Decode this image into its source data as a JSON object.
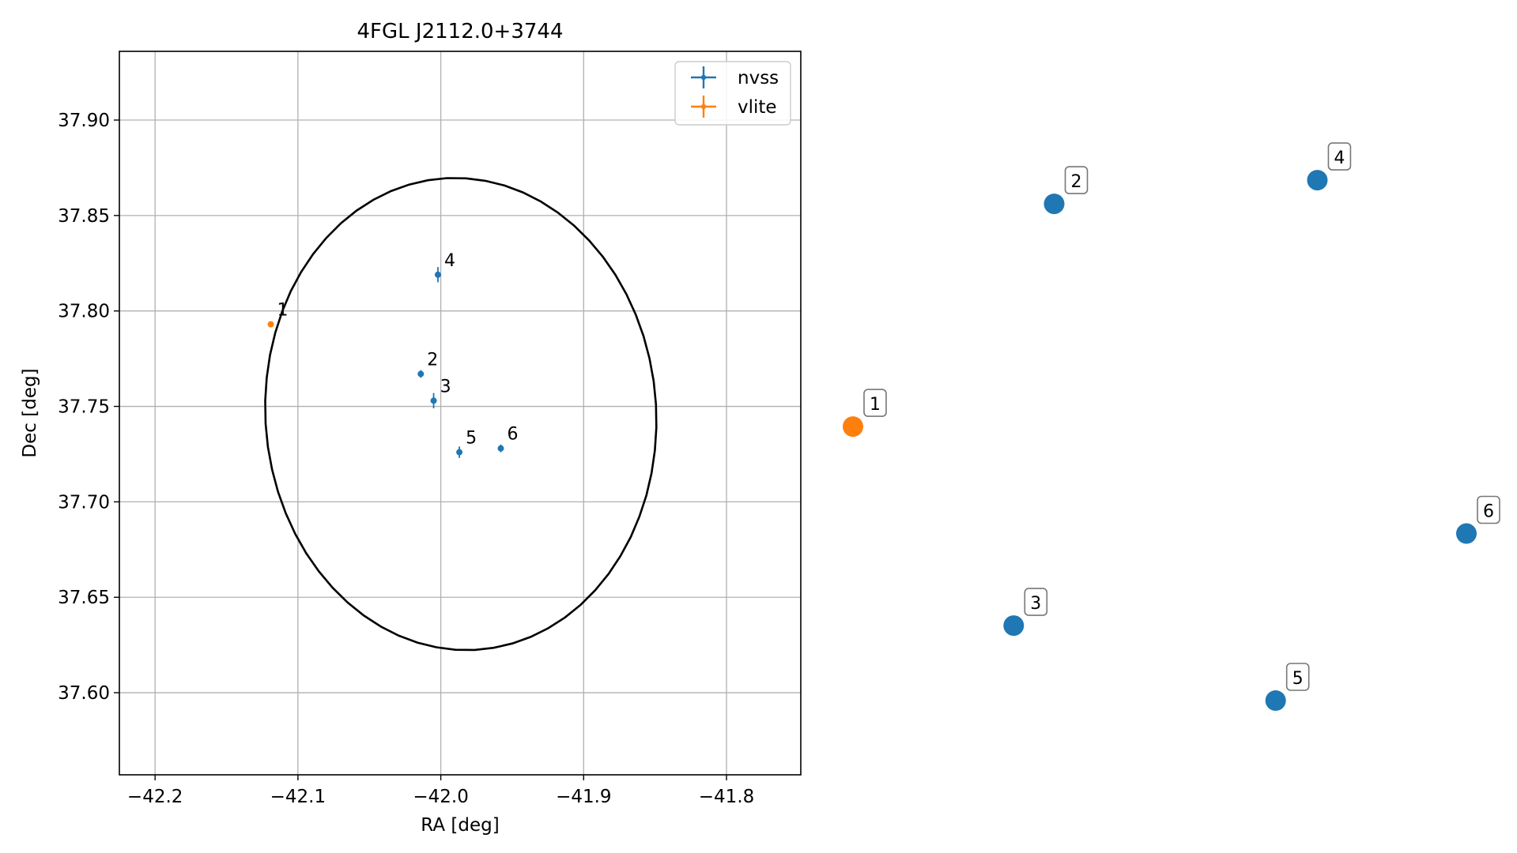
{
  "colors": {
    "nvss": "#1f77b4",
    "vlite": "#ff7f0e",
    "ellipse": "#000000",
    "grid": "#b0b0b0"
  },
  "chart_data": [
    {
      "type": "scatter",
      "title": "4FGL J2112.0+3744",
      "xlabel": "RA [deg]",
      "ylabel": "Dec [deg]",
      "xlim": [
        -42.225,
        -41.748
      ],
      "ylim": [
        37.557,
        37.936
      ],
      "xticks": [
        -42.2,
        -42.1,
        -42.0,
        -41.9,
        -41.8
      ],
      "xtick_labels": [
        "−42.2",
        "−42.1",
        "−42.0",
        "−41.9",
        "−41.8"
      ],
      "yticks": [
        37.6,
        37.65,
        37.7,
        37.75,
        37.8,
        37.85,
        37.9
      ],
      "ytick_labels": [
        "37.60",
        "37.65",
        "37.70",
        "37.75",
        "37.80",
        "37.85",
        "37.90"
      ],
      "grid": true,
      "legend_position": "top-right",
      "legend": [
        {
          "label": "nvss",
          "color": "#1f77b4"
        },
        {
          "label": "vlite",
          "color": "#ff7f0e"
        }
      ],
      "series": [
        {
          "name": "nvss",
          "points": [
            {
              "label": "2",
              "x": -42.014,
              "y": 37.767,
              "yerr": 0.002,
              "xerr": 0.001
            },
            {
              "label": "3",
              "x": -42.005,
              "y": 37.753,
              "yerr": 0.004,
              "xerr": 0.001
            },
            {
              "label": "4",
              "x": -42.002,
              "y": 37.819,
              "yerr": 0.004,
              "xerr": 0.001
            },
            {
              "label": "5",
              "x": -41.987,
              "y": 37.726,
              "yerr": 0.003,
              "xerr": 0.001
            },
            {
              "label": "6",
              "x": -41.958,
              "y": 37.728,
              "yerr": 0.002,
              "xerr": 0.001
            }
          ]
        },
        {
          "name": "vlite",
          "points": [
            {
              "label": "1",
              "x": -42.119,
              "y": 37.793,
              "yerr": 0.001,
              "xerr": 0.001
            }
          ]
        }
      ],
      "ellipse": {
        "center_x": -41.986,
        "center_y": 37.746,
        "semi_axis_x": 0.1372,
        "semi_axis_y": 0.1234,
        "rotation_deg": -8
      }
    },
    {
      "type": "scatter",
      "axes_visible": false,
      "points": [
        {
          "label": "1",
          "series": "vlite",
          "x": 0.0,
          "y": 0.497
        },
        {
          "label": "2",
          "series": "nvss",
          "x": 0.328,
          "y": 0.901
        },
        {
          "label": "3",
          "series": "nvss",
          "x": 0.262,
          "y": 0.136
        },
        {
          "label": "4",
          "series": "nvss",
          "x": 0.757,
          "y": 0.944
        },
        {
          "label": "5",
          "series": "nvss",
          "x": 0.689,
          "y": 0.0
        },
        {
          "label": "6",
          "series": "nvss",
          "x": 1.0,
          "y": 0.303
        }
      ]
    }
  ]
}
